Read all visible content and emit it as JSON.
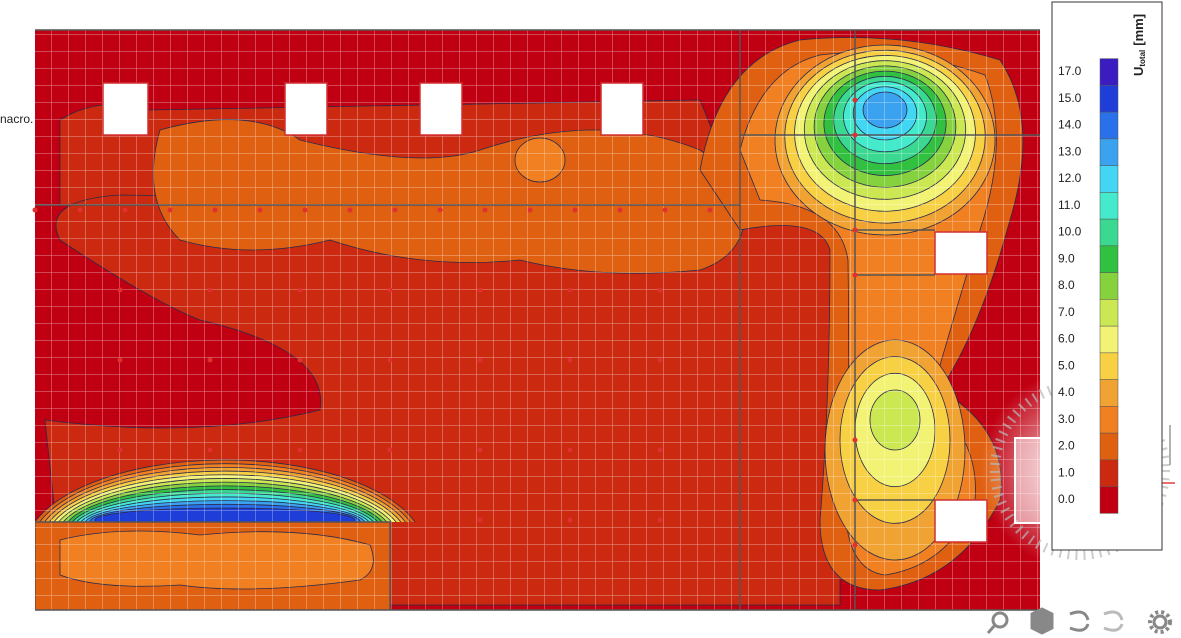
{
  "side_label": "nacro.",
  "legend": {
    "title": "U",
    "subscript": "total",
    "unit": "[mm]",
    "labels": [
      "17.0",
      "15.0",
      "14.0",
      "13.0",
      "12.0",
      "11.0",
      "10.0",
      "9.0",
      "8.0",
      "7.0",
      "6.0",
      "5.0",
      "4.0",
      "3.0",
      "2.0",
      "1.0",
      "0.0"
    ],
    "colors": [
      "#3a1cc0",
      "#1f3ed8",
      "#2a70ea",
      "#3ba2f0",
      "#42d6f2",
      "#44eacb",
      "#3ad890",
      "#32c040",
      "#86d23e",
      "#cbe852",
      "#f2f274",
      "#f8d044",
      "#f0a232",
      "#f08022",
      "#e06012",
      "#cc2a10",
      "#c00012"
    ]
  }
}
